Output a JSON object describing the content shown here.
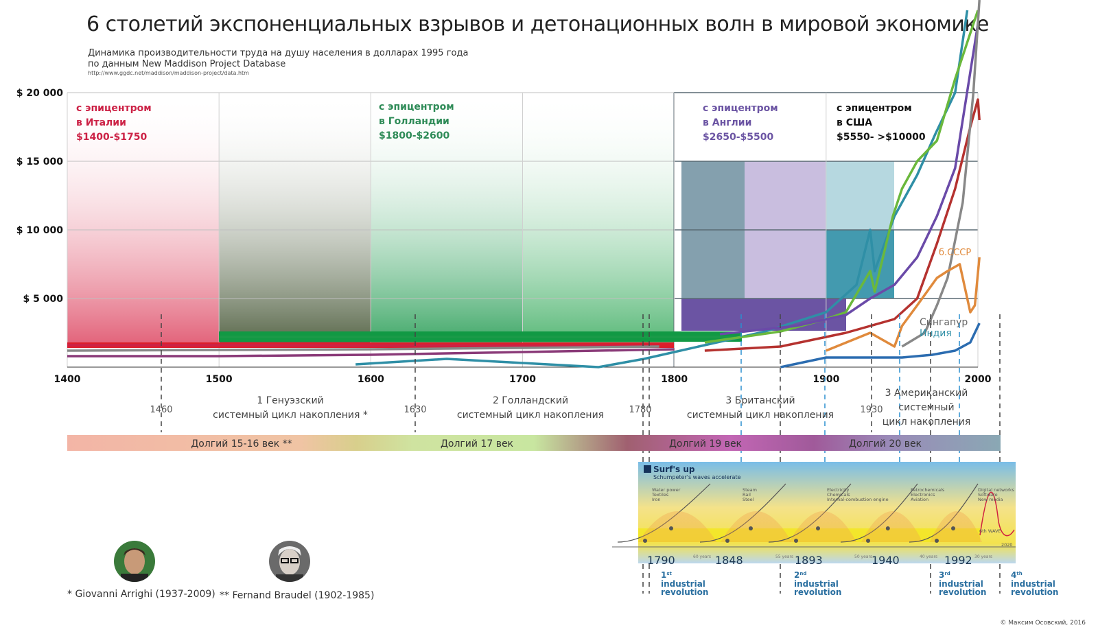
{
  "title": "6 столетий экспоненциальных взрывов и детонационных волн в мировой экономике",
  "subtitle_1": "Динамика производительности труда на душу населения в долларах 1995 года",
  "subtitle_2": "по данным New Maddison Project Database",
  "source_url": "http://www.ggdc.net/maddison/maddison-project/data.htm",
  "colors": {
    "italy": "#cc2246",
    "holland": "#2e8b57",
    "england": "#6b54a3",
    "usa": "#111111",
    "teal": "#2f8fa6",
    "green": "#6ab83c",
    "red": "#b5322f",
    "purple": "#6a4aa8",
    "gray": "#888888",
    "orange": "#e08a3c",
    "blue": "#2b6cb0"
  },
  "chart_data": {
    "type": "line",
    "title": "",
    "xlabel": "",
    "ylabel": "",
    "xlim": [
      1400,
      2000
    ],
    "ylim": [
      0,
      20000
    ],
    "x_ticks": [
      "1400",
      "1500",
      "1600",
      "1700",
      "1800",
      "1900",
      "2000"
    ],
    "y_ticks": [
      "$ 5 000",
      "$ 10 000",
      "$ 15 000",
      "$ 20 000"
    ],
    "epicenter_zones": [
      {
        "label": [
          "с эпицентром",
          "в Италии",
          "$1400-$1750"
        ],
        "color": "#cc2246",
        "x_from": 1400,
        "x_to": 1500
      },
      {
        "label": [
          "с эпицентром",
          "в Голландии",
          "$1800-$2600"
        ],
        "color": "#2e8b57",
        "x_from": 1600,
        "x_to": 1800
      },
      {
        "label": [
          "с эпицентром",
          "в Англии",
          "$2650-$5500"
        ],
        "color": "#6b54a3",
        "x_from": 1800,
        "x_to": 1900
      },
      {
        "label": [
          "с эпицентром",
          "в США",
          "$5550- >$10000"
        ],
        "color": "#111111",
        "x_from": 1900,
        "x_to": 2000
      }
    ],
    "series": [
      {
        "color": "#cc2246",
        "points": [
          [
            1400,
            1600
          ],
          [
            1500,
            1600
          ],
          [
            1600,
            1560
          ],
          [
            1700,
            1560
          ],
          [
            1790,
            1540
          ]
        ]
      },
      {
        "color": "#1a9a48",
        "points": [
          [
            1500,
            2200
          ],
          [
            1600,
            2200
          ],
          [
            1700,
            2200
          ],
          [
            1840,
            2200
          ]
        ]
      },
      {
        "color": "#8a3a78",
        "points": [
          [
            1400,
            800
          ],
          [
            1500,
            800
          ],
          [
            1600,
            900
          ],
          [
            1700,
            1100
          ],
          [
            1800,
            1300
          ]
        ]
      },
      {
        "color": "#888888",
        "points": [
          [
            1400,
            1200
          ],
          [
            1500,
            1250
          ],
          [
            1600,
            1300
          ],
          [
            1700,
            1400
          ],
          [
            1790,
            1500
          ]
        ]
      },
      {
        "color": "#2f8fa6",
        "points": [
          [
            1590,
            200
          ],
          [
            1650,
            600
          ],
          [
            1700,
            300
          ],
          [
            1750,
            0
          ],
          [
            1780,
            600
          ],
          [
            1820,
            1600
          ],
          [
            1860,
            2600
          ],
          [
            1900,
            4000
          ],
          [
            1920,
            6000
          ],
          [
            1929,
            10000
          ],
          [
            1932,
            7000
          ],
          [
            1945,
            11000
          ],
          [
            1960,
            14000
          ],
          [
            1972,
            17000
          ],
          [
            1985,
            20000
          ],
          [
            1993,
            26000
          ]
        ]
      },
      {
        "color": "#6ab83c",
        "points": [
          [
            1820,
            1800
          ],
          [
            1870,
            2600
          ],
          [
            1900,
            3500
          ],
          [
            1913,
            4000
          ],
          [
            1929,
            7000
          ],
          [
            1932,
            5500
          ],
          [
            1944,
            11000
          ],
          [
            1950,
            13000
          ],
          [
            1960,
            15000
          ],
          [
            1973,
            16500
          ],
          [
            1985,
            21000
          ],
          [
            2000,
            26000
          ]
        ]
      },
      {
        "color": "#6a4aa8",
        "points": [
          [
            1830,
            2400
          ],
          [
            1880,
            3000
          ],
          [
            1913,
            3800
          ],
          [
            1929,
            5000
          ],
          [
            1945,
            6000
          ],
          [
            1960,
            8000
          ],
          [
            1973,
            11000
          ],
          [
            1985,
            14500
          ],
          [
            2000,
            25000
          ]
        ]
      },
      {
        "color": "#b5322f",
        "points": [
          [
            1820,
            1200
          ],
          [
            1870,
            1500
          ],
          [
            1913,
            2500
          ],
          [
            1929,
            3000
          ],
          [
            1945,
            3500
          ],
          [
            1960,
            5000
          ],
          [
            1973,
            9000
          ],
          [
            1985,
            13000
          ],
          [
            1995,
            17500
          ],
          [
            2000,
            19500
          ],
          [
            2001,
            18000
          ]
        ]
      },
      {
        "color": "#888888",
        "points": [
          [
            1950,
            1500
          ],
          [
            1965,
            2500
          ],
          [
            1973,
            4500
          ],
          [
            1980,
            6500
          ],
          [
            1990,
            12000
          ],
          [
            1997,
            20000
          ],
          [
            2001,
            27000
          ]
        ]
      },
      {
        "color": "#e08a3c",
        "points": [
          [
            1900,
            1200
          ],
          [
            1929,
            2500
          ],
          [
            1945,
            1500
          ],
          [
            1950,
            3000
          ],
          [
            1960,
            4500
          ],
          [
            1973,
            6500
          ],
          [
            1980,
            7000
          ],
          [
            1988,
            7500
          ],
          [
            1991,
            6000
          ],
          [
            1995,
            4000
          ],
          [
            1998,
            4500
          ],
          [
            2001,
            8000
          ]
        ]
      },
      {
        "color": "#2b6cb0",
        "points": [
          [
            1870,
            0
          ],
          [
            1900,
            700
          ],
          [
            1930,
            700
          ],
          [
            1950,
            700
          ],
          [
            1970,
            900
          ],
          [
            1985,
            1200
          ],
          [
            1995,
            1800
          ],
          [
            2001,
            3200
          ]
        ]
      }
    ],
    "annotations": [
      "б.СССР",
      "Сингапур",
      "Индия"
    ]
  },
  "cycles": [
    {
      "label_1": "1 Генуэзский",
      "label_2": "системный цикл накопления *"
    },
    {
      "label_1": "2 Голландский",
      "label_2": "системный цикл накопления"
    },
    {
      "label_1": "3 Британский",
      "label_2": "системный цикл накопления"
    },
    {
      "label_1": "3 Американский",
      "label_2": "системный",
      "label_3": "цикл накопления"
    }
  ],
  "cycle_years": [
    "1460",
    "1630",
    "1780",
    "1930"
  ],
  "long_centuries": [
    "Долгий 15-16 век **",
    "Долгий 17 век",
    "Долгий 19 век",
    "Долгий 20 век"
  ],
  "surf": {
    "title": "Surf's up",
    "subtitle": "Schumpeter's waves accelerate",
    "years": [
      "1790",
      "1848",
      "1893",
      "1940",
      "1992"
    ],
    "revolutions": [
      {
        "ord": "1",
        "sup": "st",
        "line": "industrial",
        "line2": "revolution"
      },
      {
        "ord": "2",
        "sup": "nd",
        "line": "industrial",
        "line2": "revolution"
      },
      {
        "ord": "3",
        "sup": "rd",
        "line": "industrial",
        "line2": "revolution"
      },
      {
        "ord": "4",
        "sup": "th",
        "line": "industrial",
        "line2": "revolution"
      }
    ],
    "wave_labels": [
      "Water power",
      "Textiles",
      "Iron",
      "Steam",
      "Rail",
      "Steel",
      "Electricity",
      "Chemicals",
      "Internal-combustion engine",
      "Petrochemicals",
      "Electronics",
      "Aviation",
      "Digital networks",
      "Software",
      "New media"
    ],
    "period_labels": [
      "60 years",
      "55 years",
      "50 years",
      "40 years",
      "30 years"
    ],
    "next_wave": "6th WAVE",
    "year_2020": "2020"
  },
  "people": [
    {
      "caption": "* Giovanni Arrighi (1937-2009)"
    },
    {
      "caption": "** Fernand Braudel (1902-1985)"
    }
  ],
  "credit": "© Максим Осовский, 2016"
}
